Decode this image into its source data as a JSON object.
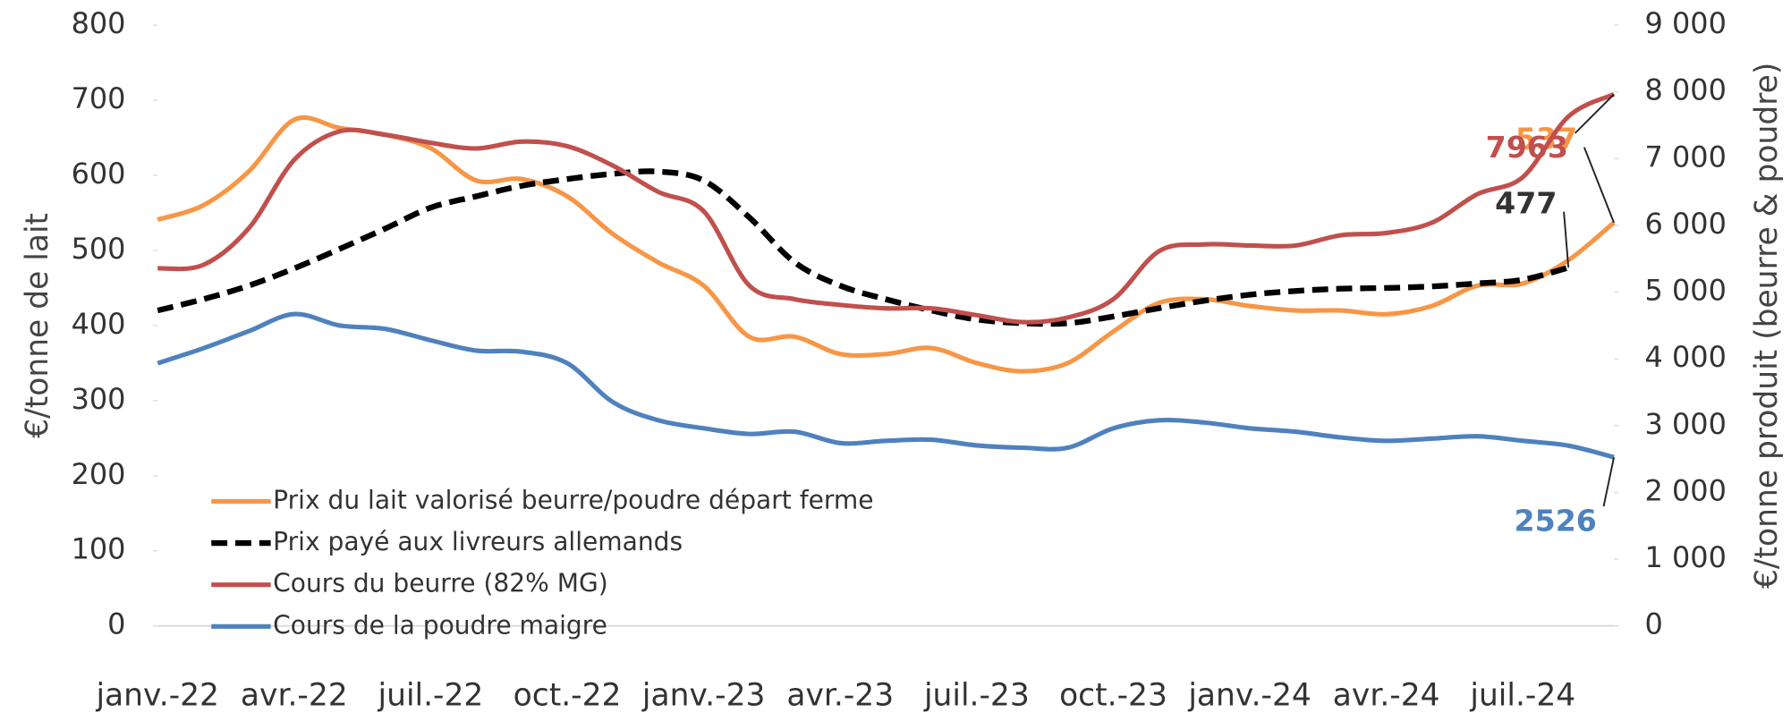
{
  "chart_data": {
    "type": "line",
    "ylabel": "€/tonne de lait",
    "y2label": "€/tonne produit (beurre & poudre)",
    "categories": [
      "janv.-22",
      null,
      null,
      "avr.-22",
      null,
      null,
      "juil.-22",
      null,
      null,
      "oct.-22",
      null,
      null,
      "janv.-23",
      null,
      null,
      "avr.-23",
      null,
      null,
      "juil.-23",
      null,
      null,
      "oct.-23",
      null,
      null,
      "janv.-24",
      null,
      null,
      "avr.-24",
      null,
      null,
      "juil.-24",
      null,
      null
    ],
    "ylim": [
      0,
      800
    ],
    "yticks": [
      0,
      100,
      200,
      300,
      400,
      500,
      600,
      700,
      800
    ],
    "y2lim": [
      0,
      9000
    ],
    "y2ticks": [
      0,
      {
        "value": 1000,
        "label": "1 000"
      },
      {
        "value": 2000,
        "label": "2 000"
      },
      {
        "value": 3000,
        "label": "3 000"
      },
      {
        "value": 4000,
        "label": "4 000"
      },
      {
        "value": 5000,
        "label": "5 000"
      },
      {
        "value": 6000,
        "label": "6 000"
      },
      {
        "value": 7000,
        "label": "7 000"
      },
      {
        "value": 8000,
        "label": "8 000"
      },
      {
        "value": 9000,
        "label": "9 000"
      }
    ],
    "grid": false,
    "legend": "lower left",
    "series": [
      {
        "name": "Prix du lait valorisé beurre/poudre départ ferme",
        "color": "#f79646",
        "dash": false,
        "values": [
          541,
          560,
          605,
          674,
          663,
          654,
          636,
          593,
          595,
          572,
          522,
          484,
          453,
          385,
          385,
          362,
          362,
          370,
          350,
          339,
          350,
          392,
          430,
          435,
          426,
          420,
          420,
          415,
          426,
          453,
          456,
          487,
          537
        ]
      },
      {
        "name": "Prix payé aux livreurs allemands",
        "color": "#000000",
        "dash": true,
        "values": [
          420,
          435,
          453,
          476,
          502,
          529,
          557,
          572,
          586,
          595,
          602,
          605,
          593,
          544,
          484,
          453,
          435,
          420,
          408,
          403,
          403,
          412,
          423,
          433,
          441,
          446,
          449,
          450,
          452,
          456,
          461,
          477,
          null
        ]
      },
      {
        "name": "Cours du beurre (82% MG)",
        "color": "#c0504d",
        "dash": false,
        "axis": "y2",
        "values": [
          5356,
          5407,
          5955,
          6981,
          7409,
          7357,
          7237,
          7152,
          7255,
          7186,
          6896,
          6502,
          6211,
          5099,
          4894,
          4808,
          4757,
          4757,
          4654,
          4551,
          4620,
          4894,
          5612,
          5715,
          5698,
          5698,
          5852,
          5886,
          6040,
          6468,
          6724,
          7631,
          7963
        ]
      },
      {
        "name": "Cours de la poudre maigre",
        "color": "#4f81bd",
        "dash": false,
        "axis": "y2",
        "values": [
          3935,
          4158,
          4414,
          4671,
          4500,
          4449,
          4278,
          4124,
          4107,
          3935,
          3354,
          3080,
          2960,
          2875,
          2909,
          2738,
          2772,
          2789,
          2703,
          2669,
          2669,
          2960,
          3080,
          3046,
          2960,
          2909,
          2823,
          2772,
          2806,
          2840,
          2772,
          2700,
          2526
        ]
      }
    ]
  }
}
